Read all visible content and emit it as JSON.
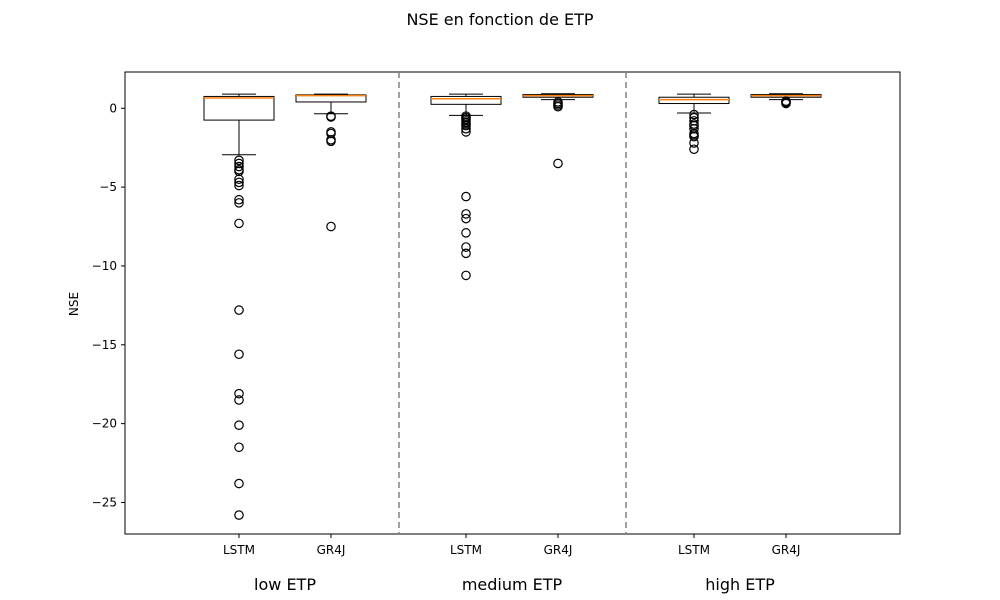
{
  "chart_data": {
    "type": "boxplot",
    "title": "NSE en fonction de ETP",
    "xlabel": "",
    "ylabel": "NSE",
    "ylim": [
      -27.0,
      2.3
    ],
    "yticks": [
      0,
      -5,
      -10,
      -15,
      -20,
      -25
    ],
    "ytick_labels": [
      "0",
      "−5",
      "−10",
      "−15",
      "−20",
      "−25"
    ],
    "grid": false,
    "group_separators": "dashed vertical lines between groups",
    "groups": [
      {
        "label": "low ETP",
        "boxes": [
          {
            "label": "LSTM",
            "q1": -0.75,
            "median": 0.65,
            "q3": 0.75,
            "whisker_low": -2.95,
            "whisker_high": 0.9,
            "outliers": [
              -3.3,
              -3.5,
              -3.7,
              -3.9,
              -4.0,
              -4.5,
              -4.7,
              -4.9,
              -5.8,
              -6.0,
              -7.3,
              -12.8,
              -15.6,
              -18.1,
              -18.5,
              -20.1,
              -21.5,
              -23.8,
              -25.8
            ]
          },
          {
            "label": "GR4J",
            "q1": 0.4,
            "median": 0.8,
            "q3": 0.85,
            "whisker_low": -0.35,
            "whisker_high": 0.9,
            "outliers": [
              -0.5,
              -0.55,
              -1.5,
              -1.6,
              -2.0,
              -2.1,
              -7.5
            ]
          }
        ]
      },
      {
        "label": "medium ETP",
        "boxes": [
          {
            "label": "LSTM",
            "q1": 0.25,
            "median": 0.6,
            "q3": 0.75,
            "whisker_low": -0.45,
            "whisker_high": 0.9,
            "outliers": [
              -0.5,
              -0.6,
              -0.7,
              -0.8,
              -0.9,
              -1.0,
              -1.1,
              -1.3,
              -1.5,
              -5.6,
              -6.7,
              -7.0,
              -7.9,
              -8.8,
              -9.2,
              -10.6
            ]
          },
          {
            "label": "GR4J",
            "q1": 0.7,
            "median": 0.8,
            "q3": 0.87,
            "whisker_low": 0.55,
            "whisker_high": 0.92,
            "outliers": [
              0.4,
              0.3,
              0.2,
              0.1,
              -3.5
            ]
          }
        ]
      },
      {
        "label": "high ETP",
        "boxes": [
          {
            "label": "LSTM",
            "q1": 0.3,
            "median": 0.55,
            "q3": 0.7,
            "whisker_low": -0.3,
            "whisker_high": 0.9,
            "outliers": [
              -0.4,
              -0.6,
              -0.8,
              -1.0,
              -1.1,
              -1.3,
              -1.6,
              -1.7,
              -1.8,
              -2.2,
              -2.6
            ]
          },
          {
            "label": "GR4J",
            "q1": 0.7,
            "median": 0.8,
            "q3": 0.87,
            "whisker_low": 0.55,
            "whisker_high": 0.92,
            "outliers": [
              0.45,
              0.4,
              0.35,
              0.3
            ]
          }
        ]
      }
    ]
  },
  "colors": {
    "box": "#000000",
    "median": "#ff7f0e",
    "separator": "#808080"
  }
}
